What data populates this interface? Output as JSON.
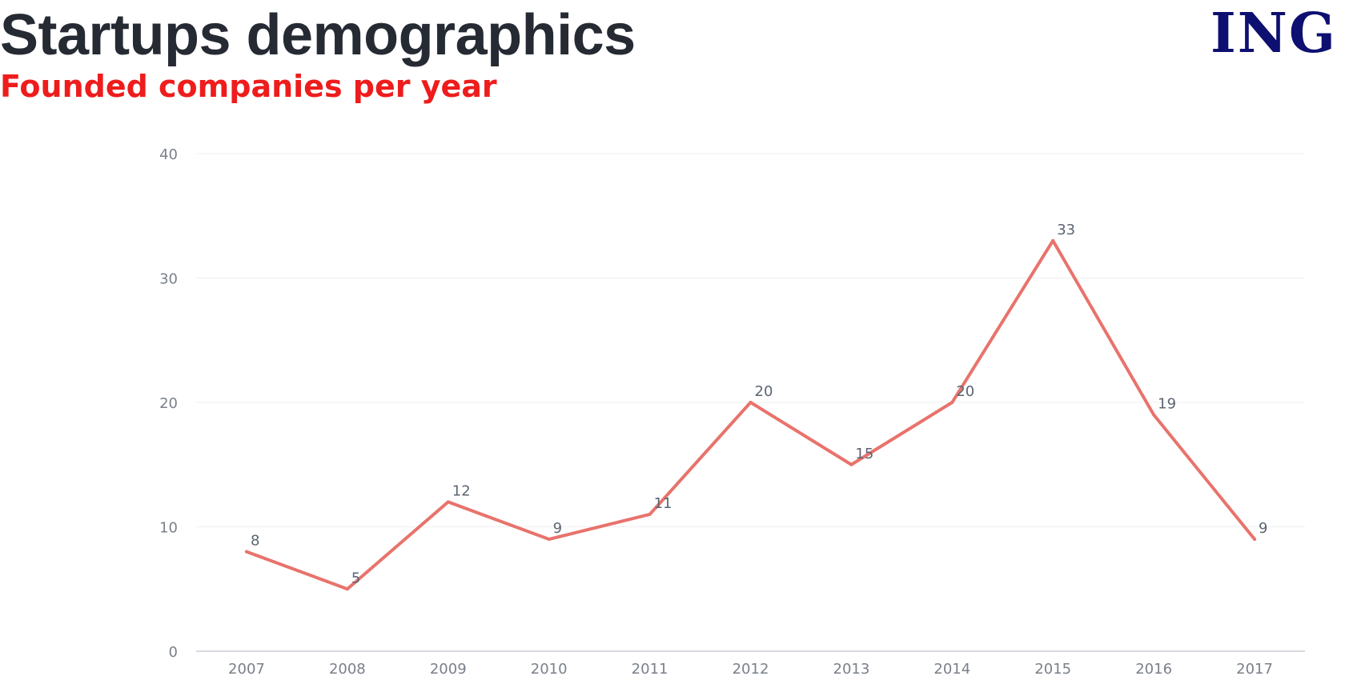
{
  "header": {
    "title": "Startups demographics",
    "subtitle": "Founded companies per year",
    "logo_text": "ING"
  },
  "chart_data": {
    "type": "line",
    "title": "Startups demographics",
    "subtitle": "Founded companies per year",
    "categories": [
      "2007",
      "2008",
      "2009",
      "2010",
      "2011",
      "2012",
      "2013",
      "2014",
      "2015",
      "2016",
      "2017"
    ],
    "series": [
      {
        "values": [
          8,
          5,
          12,
          9,
          11,
          20,
          15,
          20,
          33,
          19,
          9
        ],
        "color": "#e8736c"
      }
    ],
    "ylim": [
      0,
      40
    ],
    "yticks": [
      0,
      10,
      20,
      30,
      40
    ],
    "xlabel": "",
    "ylabel": "",
    "grid": true,
    "data_labels": true,
    "legend": "none"
  },
  "colors": {
    "title": "#262a33",
    "subtitle": "#ee1c1c",
    "logo": "#0d1070",
    "line": "#e8736c",
    "grid": "#eef0f2",
    "axis_text": "#7a808a"
  }
}
